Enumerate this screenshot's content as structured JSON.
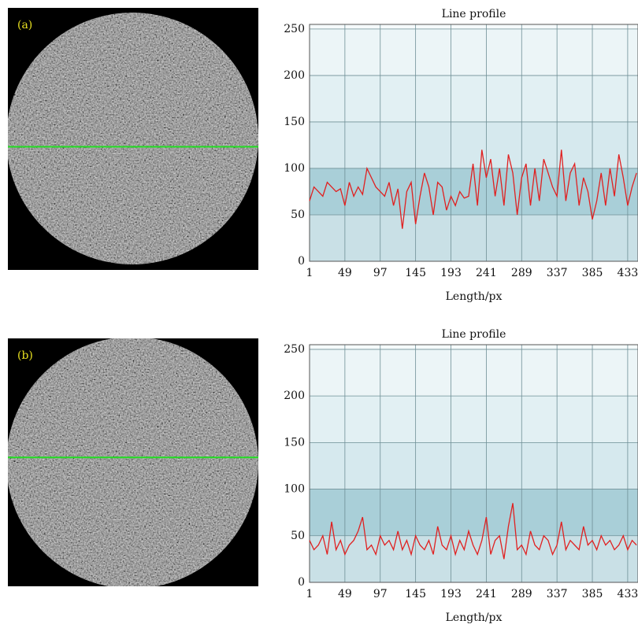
{
  "chart_data": [
    {
      "type": "line",
      "panel_label": "(a)",
      "title": "Line profile",
      "x_label": "Length/px",
      "xlim": [
        1,
        447
      ],
      "ylim": [
        0,
        255
      ],
      "xticks": [
        1,
        49,
        97,
        145,
        193,
        241,
        289,
        337,
        385,
        433
      ],
      "yticks": [
        0,
        50,
        100,
        150,
        200,
        250
      ],
      "grid": true,
      "color": "#e02020",
      "scan_row": 0.53,
      "x": [
        1,
        7,
        13,
        19,
        25,
        31,
        37,
        43,
        49,
        55,
        61,
        67,
        73,
        79,
        85,
        91,
        97,
        103,
        109,
        115,
        121,
        127,
        133,
        139,
        145,
        151,
        157,
        163,
        169,
        175,
        181,
        187,
        193,
        199,
        205,
        211,
        217,
        223,
        229,
        235,
        241,
        247,
        253,
        259,
        265,
        271,
        277,
        283,
        289,
        295,
        301,
        307,
        313,
        319,
        325,
        331,
        337,
        343,
        349,
        355,
        361,
        367,
        373,
        379,
        385,
        391,
        397,
        403,
        409,
        415,
        421,
        427,
        433,
        439,
        445
      ],
      "values": [
        65,
        80,
        75,
        70,
        85,
        80,
        75,
        78,
        60,
        85,
        70,
        80,
        72,
        100,
        90,
        80,
        75,
        70,
        85,
        60,
        78,
        35,
        75,
        85,
        40,
        70,
        95,
        80,
        50,
        85,
        80,
        55,
        70,
        60,
        75,
        68,
        70,
        105,
        60,
        120,
        90,
        110,
        70,
        100,
        60,
        115,
        95,
        50,
        90,
        105,
        60,
        100,
        65,
        110,
        95,
        80,
        70,
        120,
        65,
        95,
        105,
        60,
        90,
        75,
        45,
        65,
        95,
        60,
        100,
        70,
        115,
        90,
        60,
        80,
        95
      ]
    },
    {
      "type": "line",
      "panel_label": "(b)",
      "title": "Line profile",
      "x_label": "Length/px",
      "xlim": [
        1,
        447
      ],
      "ylim": [
        0,
        255
      ],
      "xticks": [
        1,
        49,
        97,
        145,
        193,
        241,
        289,
        337,
        385,
        433
      ],
      "yticks": [
        0,
        50,
        100,
        150,
        200,
        250
      ],
      "grid": true,
      "color": "#e02020",
      "scan_row": 0.48,
      "x": [
        1,
        7,
        13,
        19,
        25,
        31,
        37,
        43,
        49,
        55,
        61,
        67,
        73,
        79,
        85,
        91,
        97,
        103,
        109,
        115,
        121,
        127,
        133,
        139,
        145,
        151,
        157,
        163,
        169,
        175,
        181,
        187,
        193,
        199,
        205,
        211,
        217,
        223,
        229,
        235,
        241,
        247,
        253,
        259,
        265,
        271,
        277,
        283,
        289,
        295,
        301,
        307,
        313,
        319,
        325,
        331,
        337,
        343,
        349,
        355,
        361,
        367,
        373,
        379,
        385,
        391,
        397,
        403,
        409,
        415,
        421,
        427,
        433,
        439,
        445
      ],
      "values": [
        45,
        35,
        40,
        50,
        30,
        65,
        35,
        45,
        30,
        40,
        45,
        55,
        70,
        35,
        40,
        30,
        50,
        40,
        45,
        35,
        55,
        35,
        45,
        30,
        50,
        40,
        35,
        45,
        30,
        60,
        40,
        35,
        50,
        30,
        45,
        35,
        55,
        40,
        30,
        45,
        70,
        30,
        45,
        50,
        25,
        60,
        85,
        35,
        40,
        30,
        55,
        40,
        35,
        50,
        45,
        30,
        40,
        65,
        35,
        45,
        40,
        35,
        60,
        40,
        45,
        35,
        50,
        40,
        45,
        35,
        40,
        50,
        35,
        45,
        40
      ]
    }
  ]
}
